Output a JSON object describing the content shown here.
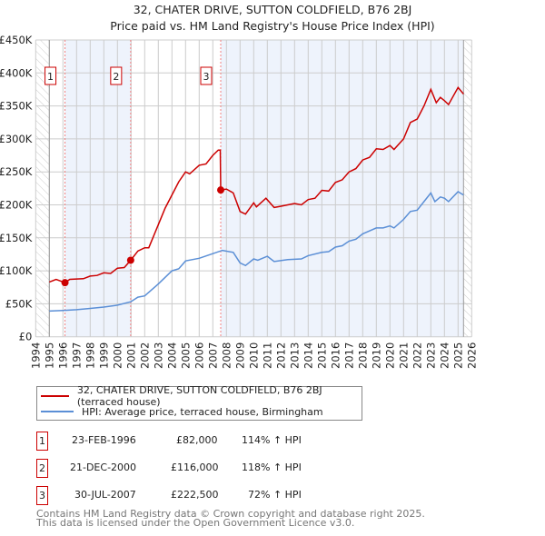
{
  "chart_data": {
    "type": "line",
    "title": "32, CHATER DRIVE, SUTTON COLDFIELD, B76 2BJ",
    "subtitle": "Price paid vs. HM Land Registry's House Price Index (HPI)",
    "xlabel": "",
    "ylabel": "",
    "xlim": [
      1994,
      2026
    ],
    "ylim": [
      0,
      450000
    ],
    "x_ticks": [
      "1994",
      "1995",
      "1996",
      "1997",
      "1998",
      "1999",
      "2000",
      "2001",
      "2002",
      "2003",
      "2004",
      "2005",
      "2006",
      "2007",
      "2008",
      "2009",
      "2010",
      "2011",
      "2012",
      "2013",
      "2014",
      "2015",
      "2016",
      "2017",
      "2018",
      "2019",
      "2020",
      "2021",
      "2022",
      "2023",
      "2024",
      "2025",
      "2026"
    ],
    "y_ticks": [
      {
        "v": 0,
        "label": "£0"
      },
      {
        "v": 50000,
        "label": "£50K"
      },
      {
        "v": 100000,
        "label": "£100K"
      },
      {
        "v": 150000,
        "label": "£150K"
      },
      {
        "v": 200000,
        "label": "£200K"
      },
      {
        "v": 250000,
        "label": "£250K"
      },
      {
        "v": 300000,
        "label": "£300K"
      },
      {
        "v": 350000,
        "label": "£350K"
      },
      {
        "v": 400000,
        "label": "£400K"
      },
      {
        "v": 450000,
        "label": "£450K"
      }
    ],
    "grid": true,
    "data_end": 2025.4,
    "series": [
      {
        "name": "32, CHATER DRIVE, SUTTON COLDFIELD, B76 2BJ (terraced house)",
        "color": "#cc0000",
        "x": [
          1995,
          1995.5,
          1996.15,
          1996.5,
          1997.5,
          1998,
          1998.5,
          1999,
          1999.5,
          2000,
          2000.5,
          2000.97,
          2001.5,
          2002,
          2002.3,
          2003,
          2003.5,
          2004,
          2004.5,
          2005,
          2005.3,
          2006,
          2006.5,
          2007,
          2007.4,
          2007.55,
          2007.58,
          2008,
          2008.5,
          2009,
          2009.4,
          2010,
          2010.2,
          2010.9,
          2011.5,
          2012,
          2012.5,
          2013,
          2013.5,
          2014,
          2014.5,
          2015,
          2015.5,
          2016,
          2016.5,
          2017,
          2017.5,
          2018,
          2018.5,
          2019,
          2019.5,
          2020,
          2020.3,
          2021,
          2021.5,
          2022,
          2022.5,
          2023,
          2023.4,
          2023.7,
          2024,
          2024.3,
          2025,
          2025.4
        ],
        "y": [
          83000,
          87000,
          82000,
          87000,
          88000,
          92000,
          93000,
          97000,
          96000,
          104000,
          105000,
          116000,
          130000,
          135000,
          135000,
          170000,
          195000,
          215000,
          235000,
          250000,
          247000,
          260000,
          262000,
          275000,
          283000,
          283000,
          222500,
          224000,
          218000,
          190000,
          186000,
          203000,
          197000,
          210000,
          196000,
          198000,
          200000,
          202000,
          200000,
          208000,
          210000,
          222000,
          221000,
          234000,
          238000,
          250000,
          255000,
          268000,
          272000,
          285000,
          284000,
          290000,
          284000,
          300000,
          325000,
          330000,
          350000,
          375000,
          355000,
          363000,
          358000,
          352000,
          378000,
          368000
        ]
      },
      {
        "name": "HPI: Average price, terraced house, Birmingham",
        "color": "#5b8fd6",
        "x": [
          1995,
          1996,
          1997,
          1998,
          1999,
          2000,
          2000.97,
          2001.5,
          2002,
          2003,
          2004,
          2004.5,
          2005,
          2006,
          2007,
          2007.7,
          2008.5,
          2009,
          2009.4,
          2010,
          2010.3,
          2011,
          2011.5,
          2012.5,
          2013.5,
          2014,
          2015,
          2015.5,
          2016,
          2016.5,
          2017,
          2017.5,
          2018,
          2019,
          2019.5,
          2020,
          2020.3,
          2021,
          2021.5,
          2022,
          2022.5,
          2023,
          2023.3,
          2023.7,
          2024,
          2024.3,
          2025,
          2025.4
        ],
        "y": [
          39000,
          40000,
          41000,
          43000,
          45000,
          48000,
          53000,
          60000,
          62000,
          80000,
          100000,
          103000,
          115000,
          119000,
          126000,
          131000,
          128000,
          112000,
          108000,
          118000,
          116000,
          122000,
          114000,
          117000,
          118000,
          123000,
          128000,
          129000,
          136000,
          138000,
          145000,
          148000,
          156000,
          165000,
          165000,
          168000,
          165000,
          178000,
          190000,
          192000,
          205000,
          218000,
          205000,
          212000,
          210000,
          205000,
          220000,
          215000
        ]
      }
    ],
    "sales": [
      {
        "id": "1",
        "x": 1996.15,
        "y": 82000,
        "date": "23-FEB-1996",
        "price": "£82,000",
        "hpi": "114% ↑ HPI"
      },
      {
        "id": "2",
        "x": 2000.97,
        "y": 116000,
        "date": "21-DEC-2000",
        "price": "£116,000",
        "hpi": "118% ↑ HPI"
      },
      {
        "id": "3",
        "x": 2007.58,
        "y": 222500,
        "date": "30-JUL-2007",
        "price": "£222,500",
        "hpi": "72% ↑ HPI"
      }
    ],
    "legend_placement": "below"
  },
  "footer": {
    "line1": "Contains HM Land Registry data © Crown copyright and database right 2025.",
    "line2": "This data is licensed under the Open Government Licence v3.0."
  },
  "colors": {
    "red": "#cc0000",
    "blue": "#5b8fd6",
    "shade": "#eef3fc"
  }
}
